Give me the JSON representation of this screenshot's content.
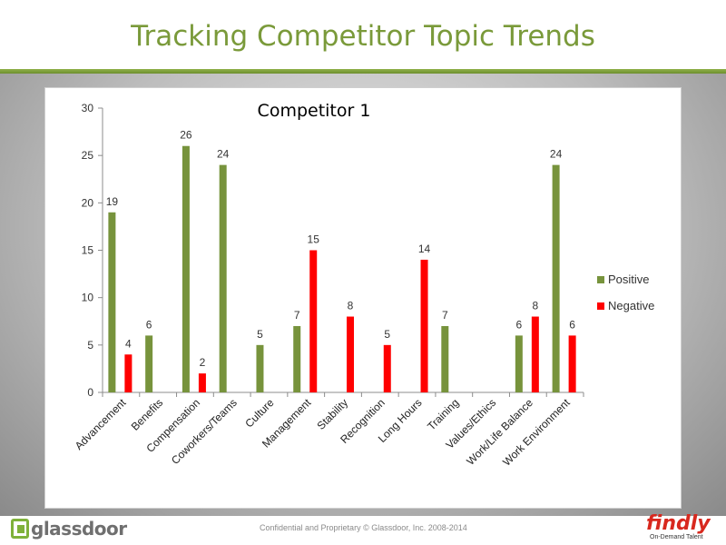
{
  "slide": {
    "title": "Tracking Competitor Topic Trends"
  },
  "footer": {
    "confidential_text": "Confidential and Proprietary © Glassdoor, Inc. 2008-2014",
    "glassdoor_logo_text": "glassdoor",
    "findly_logo_text": "findly",
    "findly_tagline": "On-Demand Talent"
  },
  "colors": {
    "title_green": "#7a9a3a",
    "positive": "#77933c",
    "negative": "#ff0000"
  },
  "chart_data": {
    "type": "bar",
    "title": "Competitor 1",
    "categories": [
      "Advancement",
      "Benefits",
      "Compensation",
      "Coworkers/Teams",
      "Culture",
      "Management",
      "Stability",
      "Recognition",
      "Long Hours",
      "Training",
      "Values/Ethics",
      "Work/Life Balance",
      "Work Environment"
    ],
    "series": [
      {
        "name": "Positive",
        "color": "#77933c",
        "values": [
          19,
          6,
          26,
          24,
          5,
          7,
          null,
          null,
          null,
          7,
          null,
          6,
          24
        ]
      },
      {
        "name": "Negative",
        "color": "#ff0000",
        "values": [
          4,
          null,
          2,
          null,
          null,
          15,
          8,
          5,
          14,
          null,
          null,
          8,
          6
        ]
      }
    ],
    "yticks": [
      0,
      5,
      10,
      15,
      20,
      25,
      30
    ],
    "ylim": [
      0,
      30
    ],
    "grid": false,
    "legend_position": "right",
    "data_labels": true
  }
}
